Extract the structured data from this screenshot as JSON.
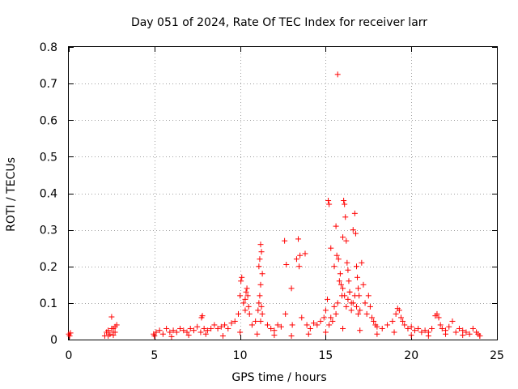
{
  "chart_data": {
    "type": "scatter",
    "title": "Day 051 of 2024, Rate Of TEC Index for receiver larr",
    "xlabel": "GPS time / hours",
    "ylabel": "ROTI / TECUs",
    "xlim": [
      0,
      25
    ],
    "ylim": [
      0,
      0.8
    ],
    "xticks": [
      0,
      5,
      10,
      15,
      20,
      25
    ],
    "yticks": [
      0,
      0.1,
      0.2,
      0.3,
      0.4,
      0.5,
      0.6,
      0.7,
      0.8
    ],
    "xtick_labels": [
      "0",
      "5",
      "10",
      "15",
      "20",
      "25"
    ],
    "ytick_labels": [
      "0",
      "0.1",
      "0.2",
      "0.3",
      "0.4",
      "0.5",
      "0.6",
      "0.7",
      "0.8"
    ],
    "grid": true,
    "marker": "+",
    "color": "#ff0000",
    "series": [
      {
        "name": "ROTI",
        "x": [
          0.0,
          0.05,
          0.1,
          2.1,
          2.2,
          2.3,
          2.4,
          2.5,
          2.6,
          2.7,
          2.8,
          2.5,
          2.6,
          2.7,
          4.95,
          5.1,
          5.3,
          5.5,
          5.7,
          5.9,
          6.1,
          6.3,
          6.5,
          6.7,
          6.9,
          7.1,
          7.3,
          7.5,
          7.7,
          7.8,
          7.75,
          7.9,
          8.1,
          8.3,
          8.5,
          8.7,
          8.9,
          9.1,
          9.3,
          9.5,
          9.7,
          9.9,
          10.0,
          10.05,
          10.1,
          10.2,
          10.3,
          10.4,
          10.45,
          10.5,
          10.55,
          10.3,
          10.35,
          10.7,
          10.9,
          11.05,
          11.1,
          11.15,
          11.2,
          11.25,
          11.3,
          11.1,
          11.2,
          11.15,
          11.25,
          11.3,
          11.2,
          11.6,
          11.8,
          12.0,
          12.2,
          12.4,
          12.6,
          12.7,
          12.65,
          13.0,
          13.05,
          13.3,
          13.4,
          13.45,
          13.5,
          13.6,
          13.8,
          13.9,
          14.1,
          14.3,
          14.5,
          14.7,
          14.9,
          15.0,
          15.1,
          15.15,
          15.2,
          15.3,
          15.5,
          15.6,
          15.65,
          15.7,
          15.75,
          15.8,
          15.85,
          15.9,
          15.95,
          16.0,
          16.05,
          16.1,
          16.15,
          16.2,
          16.25,
          16.3,
          16.35,
          16.4,
          16.5,
          16.6,
          16.7,
          16.75,
          16.8,
          16.85,
          16.9,
          16.95,
          17.0,
          17.1,
          17.2,
          17.3,
          17.4,
          17.5,
          17.6,
          17.7,
          17.8,
          17.9,
          18.0,
          18.3,
          18.6,
          18.9,
          19.1,
          19.2,
          19.3,
          19.4,
          19.5,
          19.6,
          19.8,
          20.0,
          20.2,
          20.4,
          20.6,
          20.8,
          21.0,
          21.2,
          21.4,
          21.5,
          21.6,
          21.7,
          21.8,
          22.0,
          22.2,
          22.4,
          22.6,
          22.8,
          23.0,
          23.2,
          23.4,
          23.6,
          23.8,
          23.9,
          24.0,
          15.2,
          15.3,
          15.4,
          15.5,
          15.6,
          15.7,
          16.0,
          16.1,
          16.2,
          16.3,
          16.4,
          16.5,
          16.6,
          16.7,
          16.8,
          16.9,
          2.3,
          2.6,
          5.0,
          6.0,
          7.0,
          8.0,
          9.0,
          10.0,
          11.0,
          12.0,
          13.0,
          14.0,
          15.0,
          16.0,
          17.0,
          18.0,
          19.0,
          20.0,
          21.0,
          22.0,
          23.0,
          24.0
        ],
        "y": [
          0.015,
          0.01,
          0.018,
          0.01,
          0.02,
          0.025,
          0.015,
          0.03,
          0.02,
          0.035,
          0.04,
          0.062,
          0.03,
          0.02,
          0.015,
          0.02,
          0.025,
          0.015,
          0.03,
          0.02,
          0.025,
          0.02,
          0.03,
          0.025,
          0.02,
          0.03,
          0.025,
          0.035,
          0.02,
          0.065,
          0.06,
          0.03,
          0.025,
          0.03,
          0.04,
          0.03,
          0.035,
          0.04,
          0.03,
          0.045,
          0.05,
          0.07,
          0.12,
          0.16,
          0.17,
          0.1,
          0.08,
          0.14,
          0.12,
          0.09,
          0.07,
          0.11,
          0.13,
          0.04,
          0.05,
          0.08,
          0.2,
          0.22,
          0.26,
          0.24,
          0.18,
          0.1,
          0.15,
          0.12,
          0.09,
          0.07,
          0.05,
          0.04,
          0.03,
          0.025,
          0.04,
          0.035,
          0.27,
          0.205,
          0.07,
          0.14,
          0.04,
          0.22,
          0.275,
          0.2,
          0.23,
          0.06,
          0.235,
          0.04,
          0.03,
          0.045,
          0.04,
          0.05,
          0.06,
          0.08,
          0.11,
          0.38,
          0.37,
          0.25,
          0.2,
          0.31,
          0.23,
          0.725,
          0.22,
          0.16,
          0.18,
          0.15,
          0.12,
          0.28,
          0.38,
          0.37,
          0.335,
          0.27,
          0.21,
          0.19,
          0.16,
          0.13,
          0.1,
          0.3,
          0.345,
          0.29,
          0.2,
          0.17,
          0.14,
          0.12,
          0.08,
          0.21,
          0.15,
          0.1,
          0.07,
          0.12,
          0.09,
          0.06,
          0.05,
          0.04,
          0.035,
          0.03,
          0.04,
          0.05,
          0.07,
          0.085,
          0.08,
          0.06,
          0.05,
          0.04,
          0.03,
          0.035,
          0.025,
          0.03,
          0.02,
          0.025,
          0.02,
          0.03,
          0.065,
          0.07,
          0.06,
          0.04,
          0.03,
          0.025,
          0.035,
          0.05,
          0.02,
          0.03,
          0.025,
          0.02,
          0.015,
          0.03,
          0.02,
          0.015,
          0.01,
          0.04,
          0.06,
          0.05,
          0.09,
          0.07,
          0.1,
          0.14,
          0.12,
          0.09,
          0.11,
          0.13,
          0.08,
          0.1,
          0.12,
          0.09,
          0.07,
          0.01,
          0.012,
          0.01,
          0.008,
          0.012,
          0.015,
          0.01,
          0.02,
          0.015,
          0.012,
          0.01,
          0.015,
          0.02,
          0.03,
          0.025,
          0.015,
          0.02,
          0.012,
          0.01,
          0.015,
          0.012,
          0.01
        ]
      }
    ]
  }
}
